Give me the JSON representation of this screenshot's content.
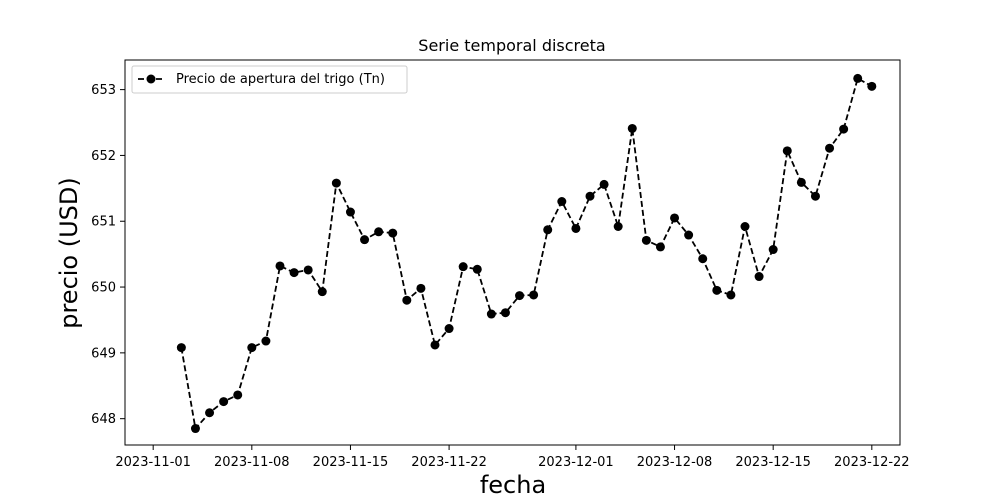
{
  "chart_data": {
    "type": "line",
    "title": "Serie temporal discreta",
    "xlabel": "fecha",
    "ylabel": "precio (USD)",
    "x_ticks": [
      "2023-11-01",
      "2023-11-08",
      "2023-11-15",
      "2023-11-22",
      "2023-12-01",
      "2023-12-08",
      "2023-12-15",
      "2023-12-22"
    ],
    "y_ticks": [
      648,
      649,
      650,
      651,
      652,
      653
    ],
    "xlim": [
      "2023-10-30",
      "2023-12-24"
    ],
    "ylim": [
      647.6,
      653.45
    ],
    "grid": false,
    "legend_position": "top-left",
    "series": [
      {
        "name": "Precio de apertura del trigo (Tn)",
        "color": "#000000",
        "line_style": "dashed",
        "marker": "circle",
        "x": [
          "2023-11-03",
          "2023-11-04",
          "2023-11-05",
          "2023-11-06",
          "2023-11-07",
          "2023-11-08",
          "2023-11-09",
          "2023-11-10",
          "2023-11-11",
          "2023-11-12",
          "2023-11-13",
          "2023-11-14",
          "2023-11-15",
          "2023-11-16",
          "2023-11-17",
          "2023-11-18",
          "2023-11-19",
          "2023-11-20",
          "2023-11-21",
          "2023-11-22",
          "2023-11-23",
          "2023-11-24",
          "2023-11-25",
          "2023-11-26",
          "2023-11-27",
          "2023-11-28",
          "2023-11-29",
          "2023-11-30",
          "2023-12-01",
          "2023-12-02",
          "2023-12-03",
          "2023-12-04",
          "2023-12-05",
          "2023-12-06",
          "2023-12-07",
          "2023-12-08",
          "2023-12-09",
          "2023-12-10",
          "2023-12-11",
          "2023-12-12",
          "2023-12-13",
          "2023-12-14",
          "2023-12-15",
          "2023-12-16",
          "2023-12-17",
          "2023-12-18",
          "2023-12-19",
          "2023-12-20",
          "2023-12-21",
          "2023-12-22"
        ],
        "y": [
          649.08,
          647.85,
          648.09,
          648.26,
          648.36,
          649.08,
          649.18,
          650.32,
          650.22,
          650.26,
          649.93,
          651.58,
          651.14,
          650.72,
          650.84,
          650.82,
          649.8,
          649.98,
          649.12,
          649.37,
          650.31,
          650.27,
          649.59,
          649.61,
          649.87,
          649.88,
          650.87,
          651.3,
          650.89,
          651.38,
          651.56,
          650.92,
          652.41,
          650.71,
          650.61,
          651.05,
          650.79,
          650.43,
          649.95,
          649.88,
          650.92,
          650.16,
          650.57,
          652.07,
          651.59,
          651.38,
          652.11,
          652.4,
          653.17,
          653.05
        ]
      }
    ]
  }
}
